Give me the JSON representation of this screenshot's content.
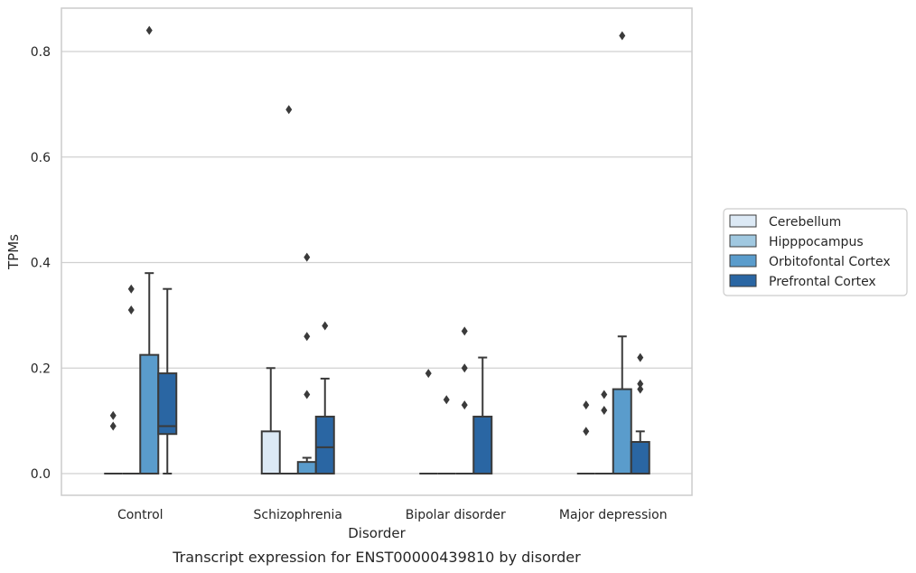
{
  "chart_data": {
    "type": "box",
    "title": "",
    "caption": "Transcript expression for ENST00000439810 by disorder",
    "xlabel": "Disorder",
    "ylabel": "TPMs",
    "ylim": [
      -0.04,
      0.885
    ],
    "yticks": [
      0.0,
      0.2,
      0.4,
      0.6,
      0.8
    ],
    "ytick_labels": [
      "0.0",
      "0.2",
      "0.4",
      "0.6",
      "0.8"
    ],
    "grid": "horizontal",
    "legend_position": "right",
    "categories": [
      "Control",
      "Schizophrenia",
      "Bipolar disorder",
      "Major depression"
    ],
    "series": [
      {
        "name": "Cerebellum",
        "color": "#dce9f5",
        "boxes": [
          {
            "min": 0,
            "q1": 0,
            "median": 0,
            "q3": 0,
            "max": 0,
            "outliers": [
              0.09,
              0.11
            ]
          },
          {
            "min": 0,
            "q1": 0,
            "median": 0,
            "q3": 0.08,
            "max": 0.2,
            "outliers": []
          },
          {
            "min": 0,
            "q1": 0,
            "median": 0,
            "q3": 0,
            "max": 0,
            "outliers": [
              0.19
            ]
          },
          {
            "min": 0,
            "q1": 0,
            "median": 0,
            "q3": 0,
            "max": 0,
            "outliers": [
              0.08,
              0.13
            ]
          }
        ]
      },
      {
        "name": "Hipppocampus",
        "color": "#a0c8e0",
        "boxes": [
          {
            "min": 0,
            "q1": 0,
            "median": 0,
            "q3": 0,
            "max": 0,
            "outliers": [
              0.31,
              0.35
            ]
          },
          {
            "min": 0,
            "q1": 0,
            "median": 0,
            "q3": 0,
            "max": 0,
            "outliers": [
              0.69
            ]
          },
          {
            "min": 0,
            "q1": 0,
            "median": 0,
            "q3": 0,
            "max": 0,
            "outliers": [
              0.14
            ]
          },
          {
            "min": 0,
            "q1": 0,
            "median": 0,
            "q3": 0,
            "max": 0,
            "outliers": [
              0.12,
              0.15
            ]
          }
        ]
      },
      {
        "name": "Orbitofontal Cortex",
        "color": "#5a9ccc",
        "boxes": [
          {
            "min": 0,
            "q1": 0,
            "median": 0,
            "q3": 0.225,
            "max": 0.38,
            "outliers": [
              0.84
            ]
          },
          {
            "min": 0,
            "q1": 0,
            "median": 0,
            "q3": 0.022,
            "max": 0.03,
            "outliers": [
              0.15,
              0.26,
              0.41
            ]
          },
          {
            "min": 0,
            "q1": 0,
            "median": 0,
            "q3": 0,
            "max": 0,
            "outliers": [
              0.13,
              0.2,
              0.27
            ]
          },
          {
            "min": 0,
            "q1": 0,
            "median": 0,
            "q3": 0.16,
            "max": 0.26,
            "outliers": [
              0.83
            ]
          }
        ]
      },
      {
        "name": "Prefrontal Cortex",
        "color": "#2a66a3",
        "boxes": [
          {
            "min": 0,
            "q1": 0.075,
            "median": 0.09,
            "q3": 0.19,
            "max": 0.35,
            "outliers": []
          },
          {
            "min": 0,
            "q1": 0,
            "median": 0.05,
            "q3": 0.108,
            "max": 0.18,
            "outliers": [
              0.28
            ]
          },
          {
            "min": 0,
            "q1": 0,
            "median": 0,
            "q3": 0.108,
            "max": 0.22,
            "outliers": []
          },
          {
            "min": 0,
            "q1": 0,
            "median": 0,
            "q3": 0.06,
            "max": 0.08,
            "outliers": [
              0.16,
              0.17,
              0.22
            ]
          }
        ]
      }
    ]
  }
}
